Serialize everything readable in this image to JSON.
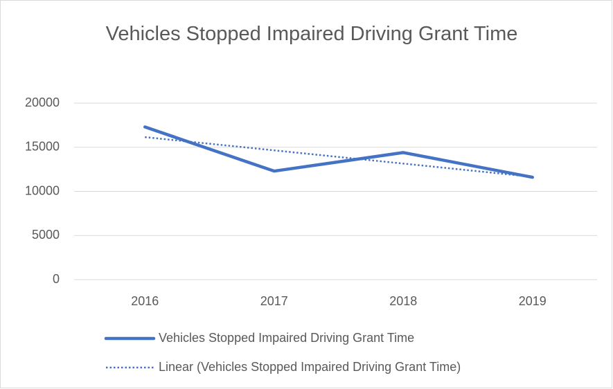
{
  "chart_data": {
    "type": "line",
    "title": "Vehicles Stopped Impaired Driving Grant Time",
    "categories": [
      "2016",
      "2017",
      "2018",
      "2019"
    ],
    "series": [
      {
        "name": "Vehicles Stopped Impaired Driving Grant Time",
        "color": "#4472c4",
        "style": "solid",
        "values": [
          17300,
          12300,
          14400,
          11600
        ]
      },
      {
        "name": "Linear (Vehicles Stopped Impaired Driving Grant Time)",
        "color": "#4472c4",
        "style": "dotted",
        "values": [
          16150,
          14650,
          13150,
          11650
        ]
      }
    ],
    "ylim": [
      0,
      20000
    ],
    "yticks": [
      0,
      5000,
      10000,
      15000,
      20000
    ],
    "grid": true,
    "legend": "bottom"
  }
}
